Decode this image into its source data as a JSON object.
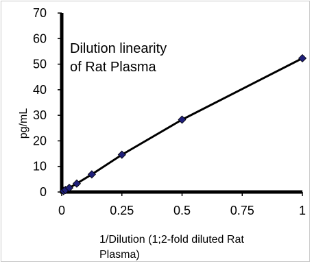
{
  "chart_data": {
    "type": "scatter",
    "title_lines": [
      "Dilution linearity",
      "of Rat Plasma"
    ],
    "xlabel_lines": [
      "1/Dilution (1;2-fold diluted Rat",
      "Plasma)"
    ],
    "ylabel": "pg/mL",
    "xlim": [
      0,
      1
    ],
    "ylim": [
      0,
      70
    ],
    "x_ticks": [
      0,
      0.25,
      0.5,
      0.75,
      1
    ],
    "x_tick_labels": [
      "0",
      "0.25",
      "0.5",
      "0.75",
      "1"
    ],
    "y_ticks": [
      0,
      10,
      20,
      30,
      40,
      50,
      60,
      70
    ],
    "y_tick_labels": [
      "0",
      "10",
      "20",
      "30",
      "40",
      "50",
      "60",
      "70"
    ],
    "grid": false,
    "legend": "none",
    "series": [
      {
        "x": [
          0.0078125,
          0.015625,
          0.03125,
          0.0625,
          0.125,
          0.25,
          0.5,
          1
        ],
        "y": [
          0.4,
          0.8,
          1.6,
          3.3,
          6.9,
          14.6,
          28.3,
          52.3
        ],
        "marker": "diamond",
        "marker_color": "#1f1f7a",
        "line_color": "#000000"
      }
    ]
  }
}
